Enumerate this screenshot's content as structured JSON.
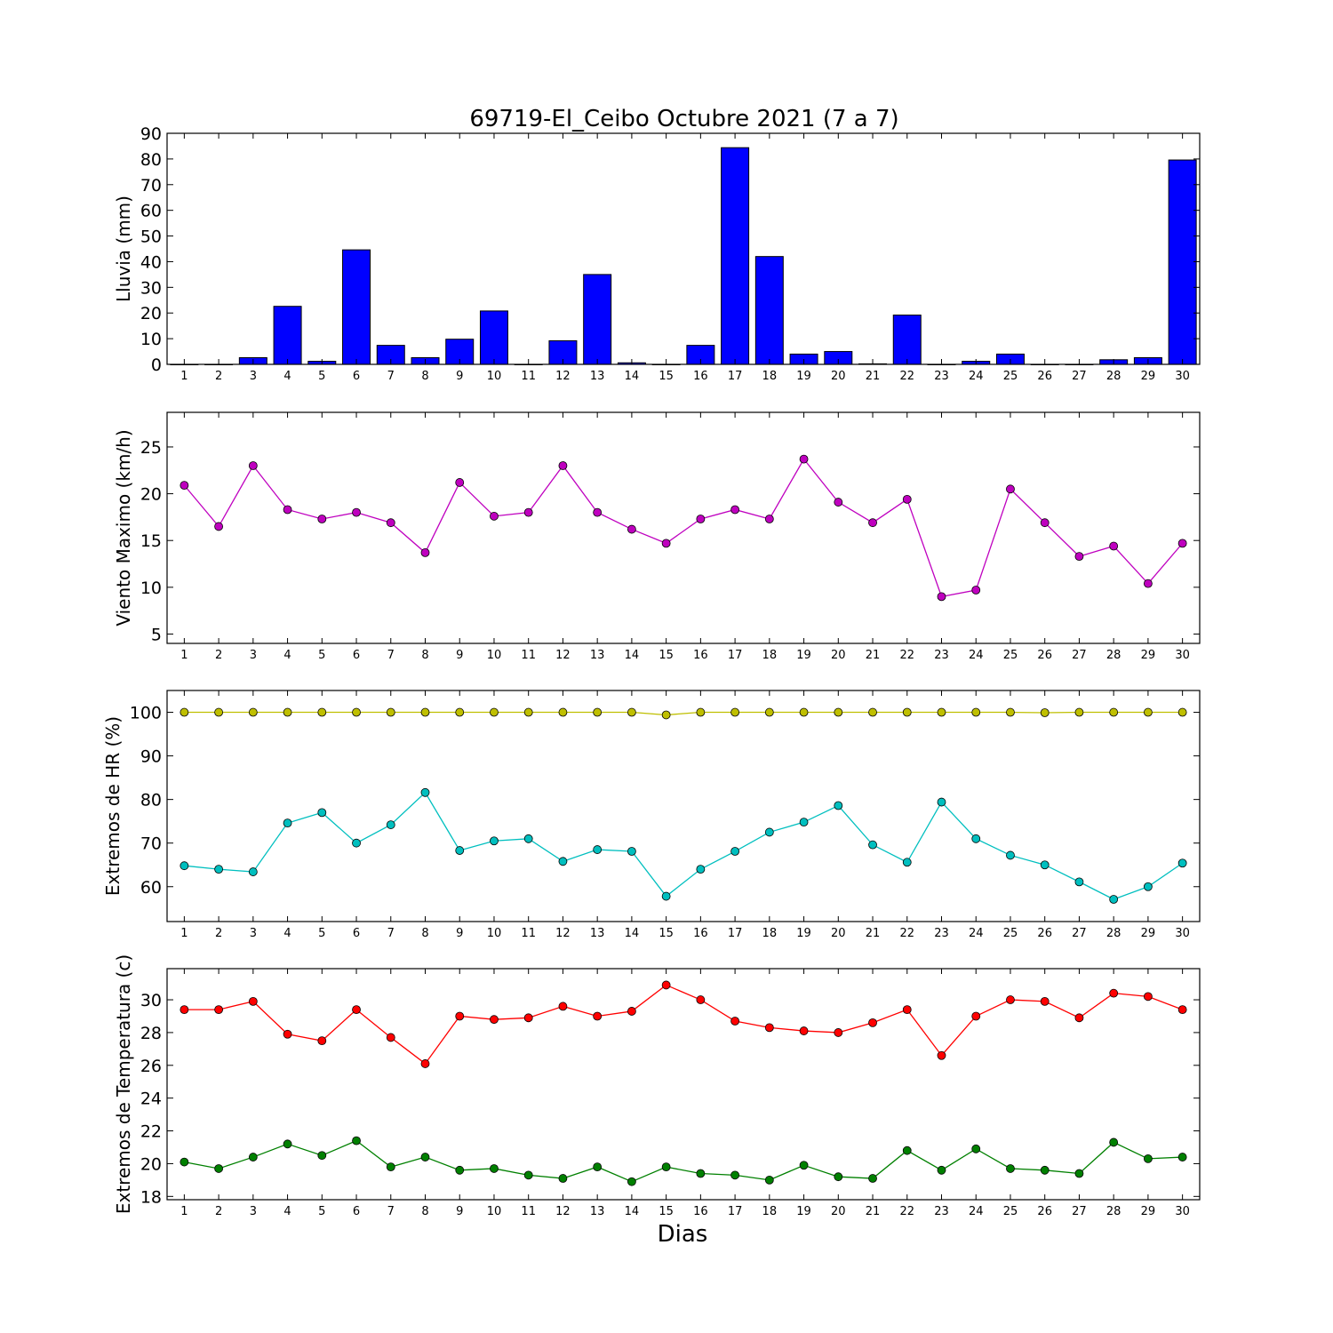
{
  "title": "69719-El_Ceibo Octubre 2021  (7 a 7)",
  "xlabel": "Dias",
  "chart_data": [
    {
      "type": "bar",
      "ylabel": "Lluvia (mm)",
      "ylim": [
        0,
        90
      ],
      "yticks": [
        0,
        10,
        20,
        30,
        40,
        50,
        60,
        70,
        80,
        90
      ],
      "color": "#0000ff",
      "x": [
        1,
        2,
        3,
        4,
        5,
        6,
        7,
        8,
        9,
        10,
        11,
        12,
        13,
        14,
        15,
        16,
        17,
        18,
        19,
        20,
        21,
        22,
        23,
        24,
        25,
        26,
        27,
        28,
        29,
        30
      ],
      "values": [
        0,
        0,
        2.6,
        22.6,
        1.2,
        44.6,
        7.4,
        2.6,
        9.8,
        20.8,
        0,
        9.2,
        35.0,
        0.6,
        0,
        7.4,
        84.4,
        42.0,
        4.0,
        5.0,
        0.2,
        19.2,
        0,
        1.2,
        4.0,
        0,
        0,
        1.8,
        2.6,
        79.6
      ]
    },
    {
      "type": "line",
      "ylabel": "Viento Maximo (km/h)",
      "ylim": [
        4,
        28.7
      ],
      "yticks": [
        5,
        10,
        15,
        20,
        25
      ],
      "color": "#bf00bf",
      "x": [
        1,
        2,
        3,
        4,
        5,
        6,
        7,
        8,
        9,
        10,
        11,
        12,
        13,
        14,
        15,
        16,
        17,
        18,
        19,
        20,
        21,
        22,
        23,
        24,
        25,
        26,
        27,
        28,
        29,
        30
      ],
      "values": [
        20.9,
        16.5,
        23.0,
        18.3,
        17.3,
        18.0,
        16.9,
        13.7,
        21.2,
        17.6,
        18.0,
        23.0,
        18.0,
        16.2,
        14.7,
        17.3,
        18.3,
        17.3,
        23.7,
        19.1,
        16.9,
        19.4,
        9.0,
        9.7,
        20.5,
        16.9,
        13.3,
        14.4,
        10.4,
        14.7
      ]
    },
    {
      "type": "line",
      "ylabel": "Extremos de HR (%)",
      "ylim": [
        52,
        105
      ],
      "yticks": [
        60,
        70,
        80,
        90,
        100
      ],
      "x": [
        1,
        2,
        3,
        4,
        5,
        6,
        7,
        8,
        9,
        10,
        11,
        12,
        13,
        14,
        15,
        16,
        17,
        18,
        19,
        20,
        21,
        22,
        23,
        24,
        25,
        26,
        27,
        28,
        29,
        30
      ],
      "series": [
        {
          "color": "#bfbf00",
          "values": [
            100,
            100,
            100,
            100,
            100,
            100,
            100,
            100,
            100,
            100,
            100,
            100,
            100,
            100,
            99.4,
            100,
            100,
            100,
            100,
            100,
            100,
            100,
            100,
            100,
            100,
            99.9,
            100,
            100,
            100,
            100
          ]
        },
        {
          "color": "#00bfbf",
          "values": [
            64.8,
            64.0,
            63.4,
            74.6,
            77.0,
            70.0,
            74.2,
            81.6,
            68.3,
            70.5,
            71.0,
            65.8,
            68.5,
            68.1,
            57.8,
            64.0,
            68.1,
            72.5,
            74.8,
            78.6,
            69.6,
            65.6,
            79.4,
            71.0,
            67.2,
            65.0,
            61.1,
            57.1,
            60.0,
            65.4
          ]
        }
      ]
    },
    {
      "type": "line",
      "ylabel": "Extremos de Temperatura (c)",
      "ylim": [
        17.8,
        31.9
      ],
      "yticks": [
        18,
        20,
        22,
        24,
        26,
        28,
        30
      ],
      "x": [
        1,
        2,
        3,
        4,
        5,
        6,
        7,
        8,
        9,
        10,
        11,
        12,
        13,
        14,
        15,
        16,
        17,
        18,
        19,
        20,
        21,
        22,
        23,
        24,
        25,
        26,
        27,
        28,
        29,
        30
      ],
      "series": [
        {
          "color": "#ff0000",
          "values": [
            29.4,
            29.4,
            29.9,
            27.9,
            27.5,
            29.4,
            27.7,
            26.1,
            29.0,
            28.8,
            28.9,
            29.6,
            29.0,
            29.3,
            30.9,
            30.0,
            28.7,
            28.3,
            28.1,
            28.0,
            28.6,
            29.4,
            26.6,
            29.0,
            30.0,
            29.9,
            28.9,
            30.4,
            30.2,
            29.4
          ]
        },
        {
          "color": "#008000",
          "values": [
            20.1,
            19.7,
            20.4,
            21.2,
            20.5,
            21.4,
            19.8,
            20.4,
            19.6,
            19.7,
            19.3,
            19.1,
            19.8,
            18.9,
            19.8,
            19.4,
            19.3,
            19.0,
            19.9,
            19.2,
            19.1,
            20.8,
            19.6,
            20.9,
            19.7,
            19.6,
            19.4,
            21.3,
            20.3,
            20.4
          ]
        }
      ]
    }
  ]
}
